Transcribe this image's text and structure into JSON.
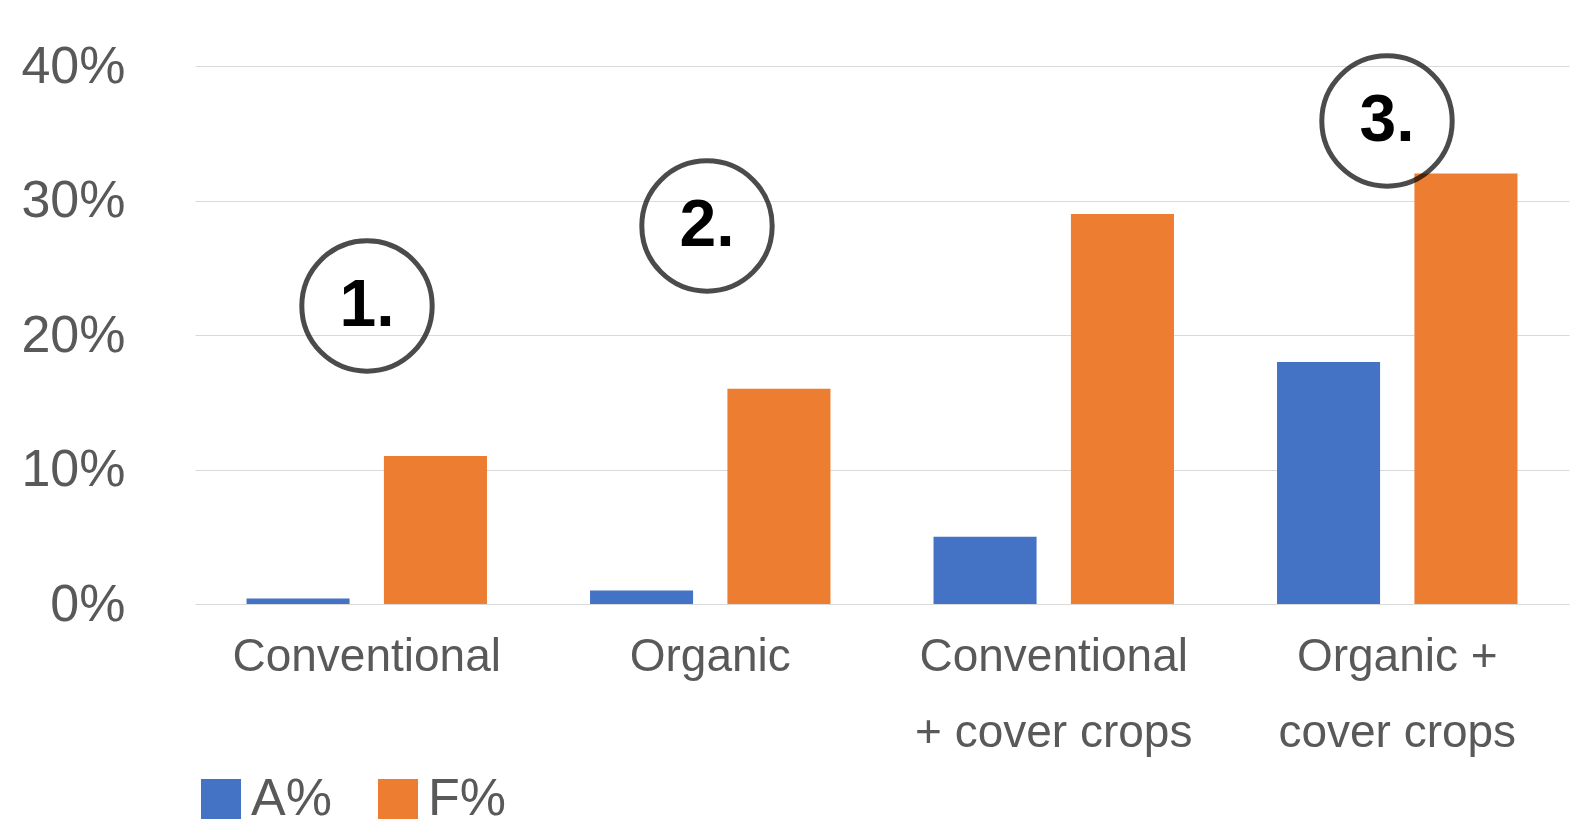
{
  "chart_data": {
    "type": "bar",
    "categories": [
      "Conventional",
      "Organic",
      "Conventional\n+ cover crops",
      "Organic +\ncover crops"
    ],
    "series": [
      {
        "name": "A%",
        "color": "#4472c4",
        "values": [
          0.4,
          1,
          5,
          18
        ]
      },
      {
        "name": "F%",
        "color": "#ed7d31",
        "values": [
          11,
          16,
          29,
          32
        ]
      }
    ],
    "ylim": [
      0,
      40
    ],
    "yticks": [
      {
        "value": 0,
        "label": "0%"
      },
      {
        "value": 10,
        "label": "10%"
      },
      {
        "value": 20,
        "label": "20%"
      },
      {
        "value": 30,
        "label": "30%"
      },
      {
        "value": 40,
        "label": "40%"
      }
    ],
    "grid": "y",
    "legend": "bottom",
    "annotations": [
      "1.",
      "2.",
      "3."
    ]
  }
}
